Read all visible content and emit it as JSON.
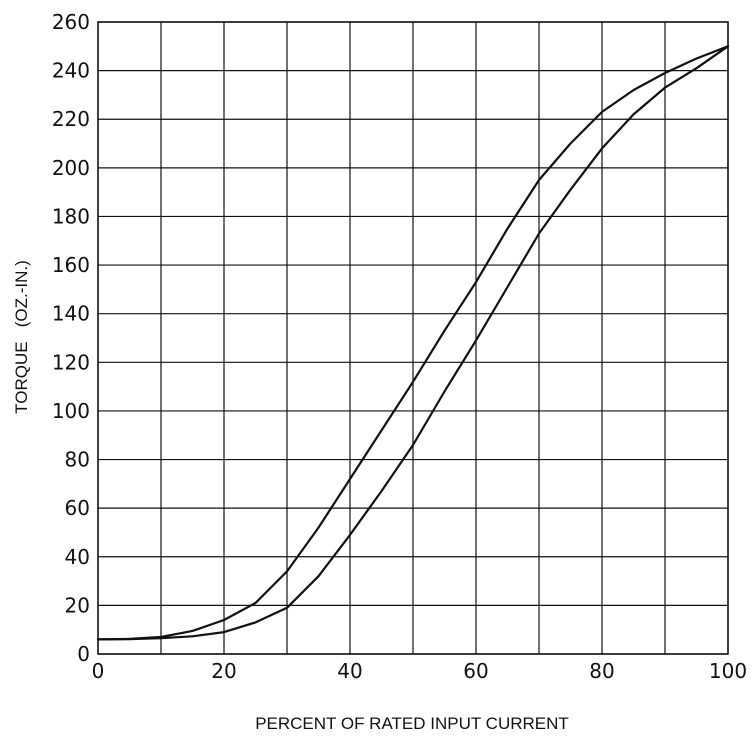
{
  "chart_data": {
    "type": "line",
    "title": "",
    "xlabel": "PERCENT OF RATED INPUT CURRENT",
    "ylabel": "TORQUE   (OZ.-IN.)",
    "xlim": [
      0,
      100
    ],
    "ylim": [
      0,
      260
    ],
    "x_ticks": [
      "0",
      "20",
      "40",
      "60",
      "80",
      "100"
    ],
    "y_ticks": [
      "0",
      "20",
      "40",
      "60",
      "80",
      "100",
      "120",
      "140",
      "160",
      "180",
      "200",
      "220",
      "240",
      "260"
    ],
    "x_grid_step": 10,
    "y_grid_step": 20,
    "grid": true,
    "legend": "none",
    "series": [
      {
        "x": [
          0,
          5,
          10,
          15,
          20,
          25,
          30,
          35,
          40,
          45,
          50,
          55,
          60,
          65,
          70,
          75,
          80,
          85,
          90,
          95,
          100
        ],
        "y": [
          6,
          6.2,
          7,
          9.5,
          14,
          21,
          34,
          52,
          72,
          92,
          112,
          133,
          153,
          175,
          195,
          210,
          223,
          232,
          239,
          245,
          250
        ]
      },
      {
        "x": [
          0,
          5,
          10,
          15,
          20,
          25,
          30,
          35,
          40,
          45,
          50,
          55,
          60,
          65,
          70,
          75,
          80,
          85,
          90,
          95,
          100
        ],
        "y": [
          6,
          6.1,
          6.5,
          7.3,
          9,
          13,
          19,
          32,
          49,
          67,
          86,
          108,
          129,
          151,
          173,
          191,
          208,
          222,
          233,
          241,
          250
        ]
      }
    ]
  }
}
